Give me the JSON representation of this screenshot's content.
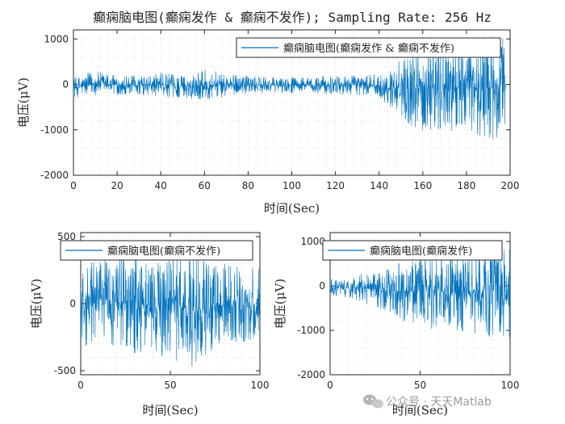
{
  "figure_title": "癫痫脑电图(癫痫发作 & 癫痫不发作); Sampling Rate: 256 Hz",
  "watermark": {
    "text": "公众号 · 天天Matlab",
    "icon": "wechat-icon"
  },
  "colors": {
    "line": "#0072BD",
    "axis": "#262626",
    "grid": "#b8b8b8"
  },
  "chart_data": [
    {
      "type": "line",
      "title": "",
      "xlabel": "时间(Sec)",
      "ylabel": "电压(μV)",
      "xlim": [
        0,
        200
      ],
      "ylim": [
        -2000,
        1200
      ],
      "xticks": [
        0,
        20,
        40,
        60,
        80,
        100,
        120,
        140,
        160,
        180,
        200
      ],
      "yticks": [
        -2000,
        -1000,
        0,
        1000
      ],
      "grid": true,
      "legend": "top-right",
      "series": [
        {
          "name": "癫痫脑电图(癫痫发作 & 癫痫不发作)",
          "envelope": {
            "x": [
              0,
              10,
              20,
              30,
              40,
              50,
              60,
              70,
              80,
              90,
              100,
              110,
              120,
              130,
              140,
              145,
              150,
              155,
              160,
              165,
              170,
              175,
              180,
              185,
              190,
              195,
              198
            ],
            "max": [
              150,
              300,
              220,
              180,
              260,
              200,
              330,
              250,
              180,
              150,
              170,
              160,
              200,
              210,
              230,
              300,
              650,
              700,
              800,
              900,
              1000,
              850,
              900,
              950,
              1050,
              1150,
              900
            ],
            "min": [
              -300,
              -250,
              -230,
              -220,
              -280,
              -300,
              -350,
              -280,
              -200,
              -180,
              -190,
              -200,
              -220,
              -230,
              -300,
              -500,
              -700,
              -950,
              -1000,
              -1100,
              -1250,
              -1000,
              -1050,
              -1100,
              -1200,
              -1400,
              -950
            ]
          }
        }
      ]
    },
    {
      "type": "line",
      "title": "",
      "xlabel": "时间(Sec)",
      "ylabel": "电压(μV)",
      "xlim": [
        0,
        100
      ],
      "ylim": [
        -530,
        530
      ],
      "xticks": [
        0,
        50,
        100
      ],
      "yticks": [
        -500,
        0,
        500
      ],
      "grid": true,
      "legend": "top",
      "series": [
        {
          "name": "癫痫脑电图(癫痫不发作)",
          "envelope": {
            "x": [
              0,
              10,
              20,
              30,
              40,
              50,
              60,
              70,
              80,
              90,
              100
            ],
            "max": [
              320,
              380,
              350,
              420,
              300,
              450,
              380,
              320,
              300,
              280,
              260
            ],
            "min": [
              -400,
              -300,
              -320,
              -380,
              -430,
              -380,
              -520,
              -400,
              -330,
              -300,
              -280
            ]
          }
        }
      ]
    },
    {
      "type": "line",
      "title": "",
      "xlabel": "时间(Sec)",
      "ylabel": "电压(μV)",
      "xlim": [
        0,
        100
      ],
      "ylim": [
        -2000,
        1200
      ],
      "xticks": [
        0,
        50,
        100
      ],
      "yticks": [
        -2000,
        -1000,
        0,
        1000
      ],
      "grid": true,
      "legend": "top",
      "series": [
        {
          "name": "癫痫脑电图(癫痫发作)",
          "envelope": {
            "x": [
              0,
              10,
              20,
              30,
              40,
              50,
              60,
              70,
              80,
              90,
              95,
              100
            ],
            "max": [
              150,
              200,
              300,
              350,
              550,
              700,
              750,
              800,
              900,
              950,
              1100,
              1000
            ],
            "min": [
              -200,
              -300,
              -400,
              -550,
              -800,
              -900,
              -1000,
              -1050,
              -1100,
              -1150,
              -1200,
              -1150
            ]
          }
        }
      ]
    }
  ]
}
